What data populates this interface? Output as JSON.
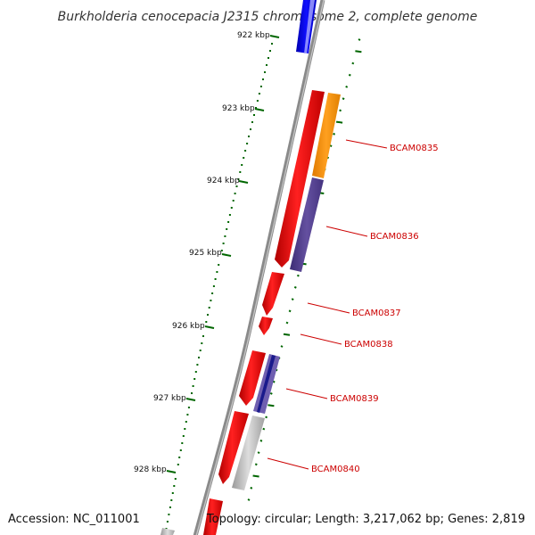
{
  "title": "Burkholderia cenocepacia J2315 chromosome 2, complete genome",
  "footer": {
    "accession": "Accession: NC_011001",
    "summary": "Topology: circular; Length: 3,217,062 bp; Genes: 2,819"
  },
  "ticks": [
    {
      "label": "922 kbp"
    },
    {
      "label": "923 kbp"
    },
    {
      "label": "924 kbp"
    },
    {
      "label": "925 kbp"
    },
    {
      "label": "926 kbp"
    },
    {
      "label": "927 kbp"
    },
    {
      "label": "928 kbp"
    }
  ],
  "genes": [
    {
      "label": "BCAM0835"
    },
    {
      "label": "BCAM0836"
    },
    {
      "label": "BCAM0837"
    },
    {
      "label": "BCAM0838"
    },
    {
      "label": "BCAM0839"
    },
    {
      "label": "BCAM0840"
    }
  ],
  "colors": {
    "cds_red": "#ff0000",
    "cds_blue": "#0000ee",
    "cog_orange": "#ff9900",
    "cog_purple": "#55408f",
    "cog_grey": "#bbbbbb",
    "backbone": "#888888",
    "tick_green": "#006600",
    "label_red": "#cc0000"
  }
}
